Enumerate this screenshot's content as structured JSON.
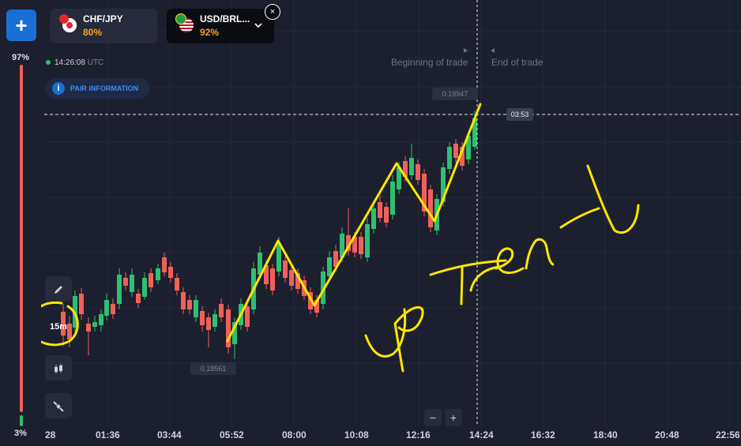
{
  "sidebar": {
    "add_label": "+",
    "top_percent": "97%",
    "bottom_percent": "3%"
  },
  "tabs": [
    {
      "name": "CHF/JPY",
      "payout": "80%"
    },
    {
      "name": "USD/BRL...",
      "payout": "92%"
    }
  ],
  "chart_header": {
    "time": "14:26:08",
    "tz": "UTC",
    "pair_info_label": "PAIR INFORMATION"
  },
  "trade_markers": {
    "begin": "Beginning of trade",
    "end": "End of trade"
  },
  "price_tags": {
    "upper": "0.19947",
    "lower": "0.18561"
  },
  "timer": "03:53",
  "toolbar": {
    "interval": "15m"
  },
  "zoom": {
    "minus": "−",
    "plus": "+"
  },
  "x_ticks": [
    "28",
    "01:36",
    "03:44",
    "05:52",
    "08:00",
    "10:08",
    "12:16",
    "14:24",
    "16:32",
    "18:40",
    "20:48",
    "22:56"
  ],
  "annotation": {
    "text": "UP Trend"
  },
  "colors": {
    "up": "#2fbf71",
    "down": "#f1605a",
    "accent": "#1a6fd6",
    "payout": "#f5a623",
    "drawing": "#ffe600"
  }
}
